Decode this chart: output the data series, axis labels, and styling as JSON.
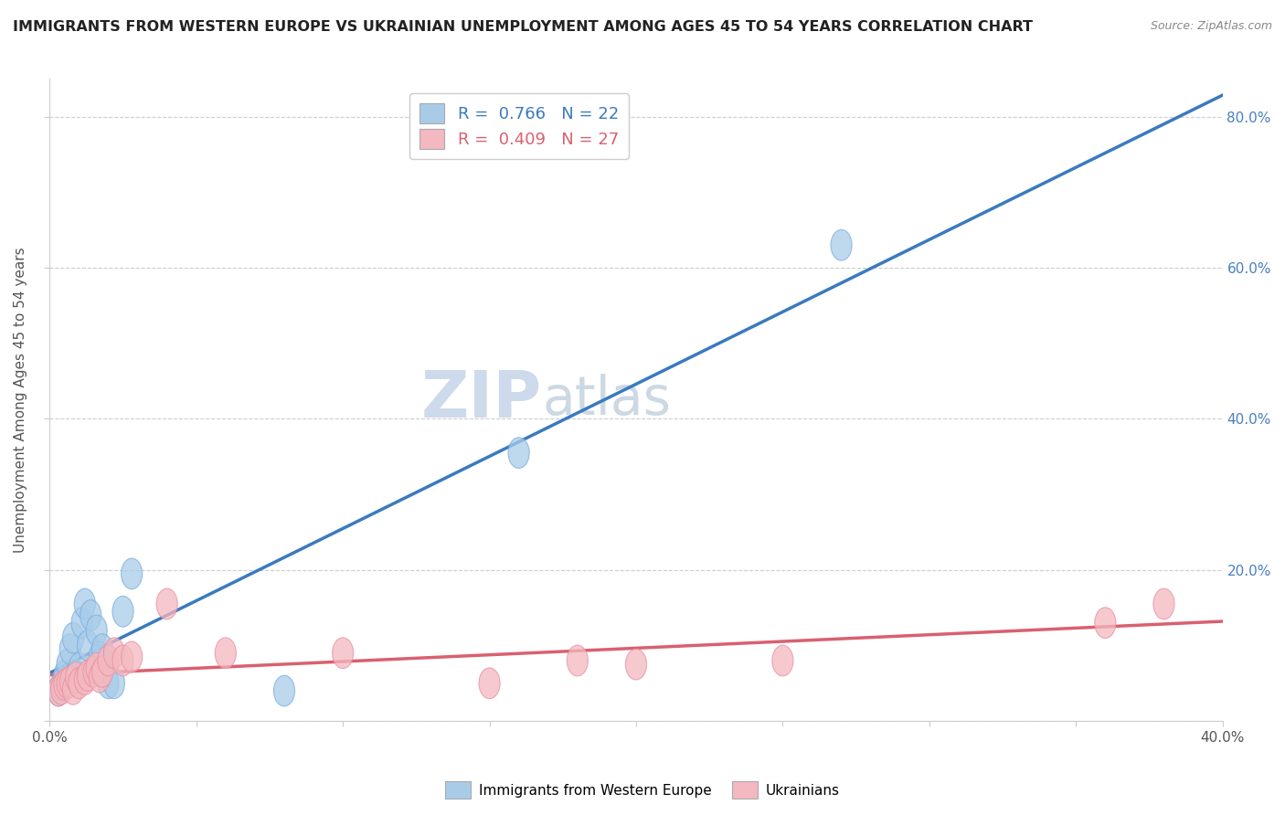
{
  "title": "IMMIGRANTS FROM WESTERN EUROPE VS UKRAINIAN UNEMPLOYMENT AMONG AGES 45 TO 54 YEARS CORRELATION CHART",
  "source": "Source: ZipAtlas.com",
  "ylabel": "Unemployment Among Ages 45 to 54 years",
  "xlim": [
    0.0,
    0.4
  ],
  "ylim": [
    0.0,
    0.85
  ],
  "xticks": [
    0.0,
    0.05,
    0.1,
    0.15,
    0.2,
    0.25,
    0.3,
    0.35,
    0.4
  ],
  "ytick_positions": [
    0.0,
    0.2,
    0.4,
    0.6,
    0.8
  ],
  "ytick_labels": [
    "",
    "20.0%",
    "40.0%",
    "60.0%",
    "80.0%"
  ],
  "xtick_labels": [
    "0.0%",
    "",
    "",
    "",
    "",
    "",
    "",
    "",
    "40.0%"
  ],
  "blue_R": 0.766,
  "blue_N": 22,
  "pink_R": 0.409,
  "pink_N": 27,
  "blue_color": "#a8cce8",
  "pink_color": "#f4b8c0",
  "blue_edge_color": "#7aade0",
  "pink_edge_color": "#e890a0",
  "blue_line_color": "#3a7abf",
  "pink_line_color": "#d96070",
  "watermark_ZIP": "ZIP",
  "watermark_atlas": "atlas",
  "blue_scatter_x": [
    0.003,
    0.004,
    0.005,
    0.006,
    0.007,
    0.008,
    0.009,
    0.01,
    0.011,
    0.012,
    0.013,
    0.014,
    0.016,
    0.017,
    0.018,
    0.02,
    0.022,
    0.025,
    0.028,
    0.08,
    0.16,
    0.27
  ],
  "blue_scatter_y": [
    0.04,
    0.048,
    0.06,
    0.075,
    0.095,
    0.11,
    0.06,
    0.07,
    0.13,
    0.155,
    0.1,
    0.14,
    0.12,
    0.085,
    0.095,
    0.05,
    0.05,
    0.145,
    0.195,
    0.04,
    0.355,
    0.63
  ],
  "pink_scatter_x": [
    0.003,
    0.004,
    0.005,
    0.006,
    0.007,
    0.008,
    0.009,
    0.01,
    0.012,
    0.013,
    0.015,
    0.016,
    0.017,
    0.018,
    0.02,
    0.022,
    0.025,
    0.028,
    0.04,
    0.06,
    0.1,
    0.15,
    0.18,
    0.2,
    0.25,
    0.36,
    0.38
  ],
  "pink_scatter_y": [
    0.04,
    0.042,
    0.048,
    0.05,
    0.052,
    0.042,
    0.058,
    0.05,
    0.055,
    0.06,
    0.065,
    0.07,
    0.058,
    0.065,
    0.08,
    0.09,
    0.08,
    0.085,
    0.155,
    0.09,
    0.09,
    0.05,
    0.08,
    0.075,
    0.08,
    0.13,
    0.155
  ],
  "legend_label_blue": "Immigrants from Western Europe",
  "legend_label_pink": "Ukrainians",
  "background_color": "#ffffff",
  "grid_color": "#cccccc"
}
